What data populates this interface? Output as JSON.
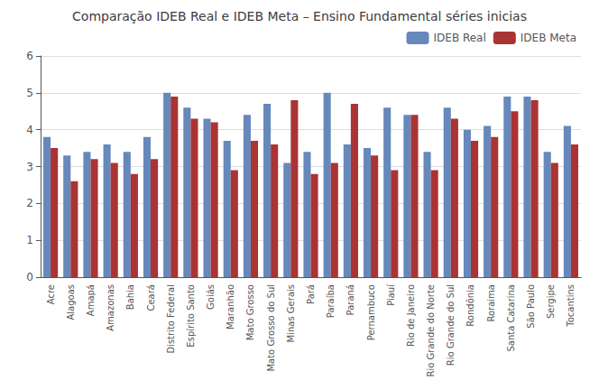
{
  "chart_data": {
    "type": "bar",
    "title": "Comparação IDEB Real e IDEB Meta – Ensino Fundamental séries inicias",
    "categories": [
      "Acre",
      "Alagoas",
      "Amapá",
      "Amazonas",
      "Bahia",
      "Ceará",
      "Distrito Federal",
      "Espírito Santo",
      "Goiás",
      "Maranhão",
      "Mato Grosso",
      "Mato Grosso do Sul",
      "Minas Gerais",
      "Pará",
      "Paraíba",
      "Paraná",
      "Pernambuco",
      "Piauí",
      "Rio de Janeiro",
      "Rio Grande do Norte",
      "Rio Grande do Sul",
      "Rondônia",
      "Roraima",
      "Santa Catarina",
      "São Paulo",
      "Sergipe",
      "Tocantins"
    ],
    "series": [
      {
        "name": "IDEB Real",
        "color": "#6688bb",
        "values": [
          3.8,
          3.3,
          3.4,
          3.6,
          3.4,
          3.8,
          5.0,
          4.6,
          4.3,
          3.7,
          4.4,
          4.7,
          3.1,
          3.4,
          5.0,
          3.6,
          3.5,
          4.6,
          4.4,
          3.4,
          4.6,
          4.0,
          4.1,
          4.9,
          4.9,
          3.4,
          4.1
        ]
      },
      {
        "name": "IDEB Meta",
        "color": "#aa3333",
        "values": [
          3.5,
          2.6,
          3.2,
          3.1,
          2.8,
          3.2,
          4.9,
          4.3,
          4.2,
          2.9,
          3.7,
          3.6,
          4.8,
          2.8,
          3.1,
          4.7,
          3.3,
          2.9,
          4.4,
          2.9,
          4.3,
          3.7,
          3.8,
          4.5,
          4.8,
          3.1,
          3.6
        ]
      }
    ],
    "ylim": [
      0,
      6
    ],
    "yticks": [
      0,
      1,
      2,
      3,
      4,
      5,
      6
    ],
    "grid": true,
    "legend": "upper right"
  }
}
